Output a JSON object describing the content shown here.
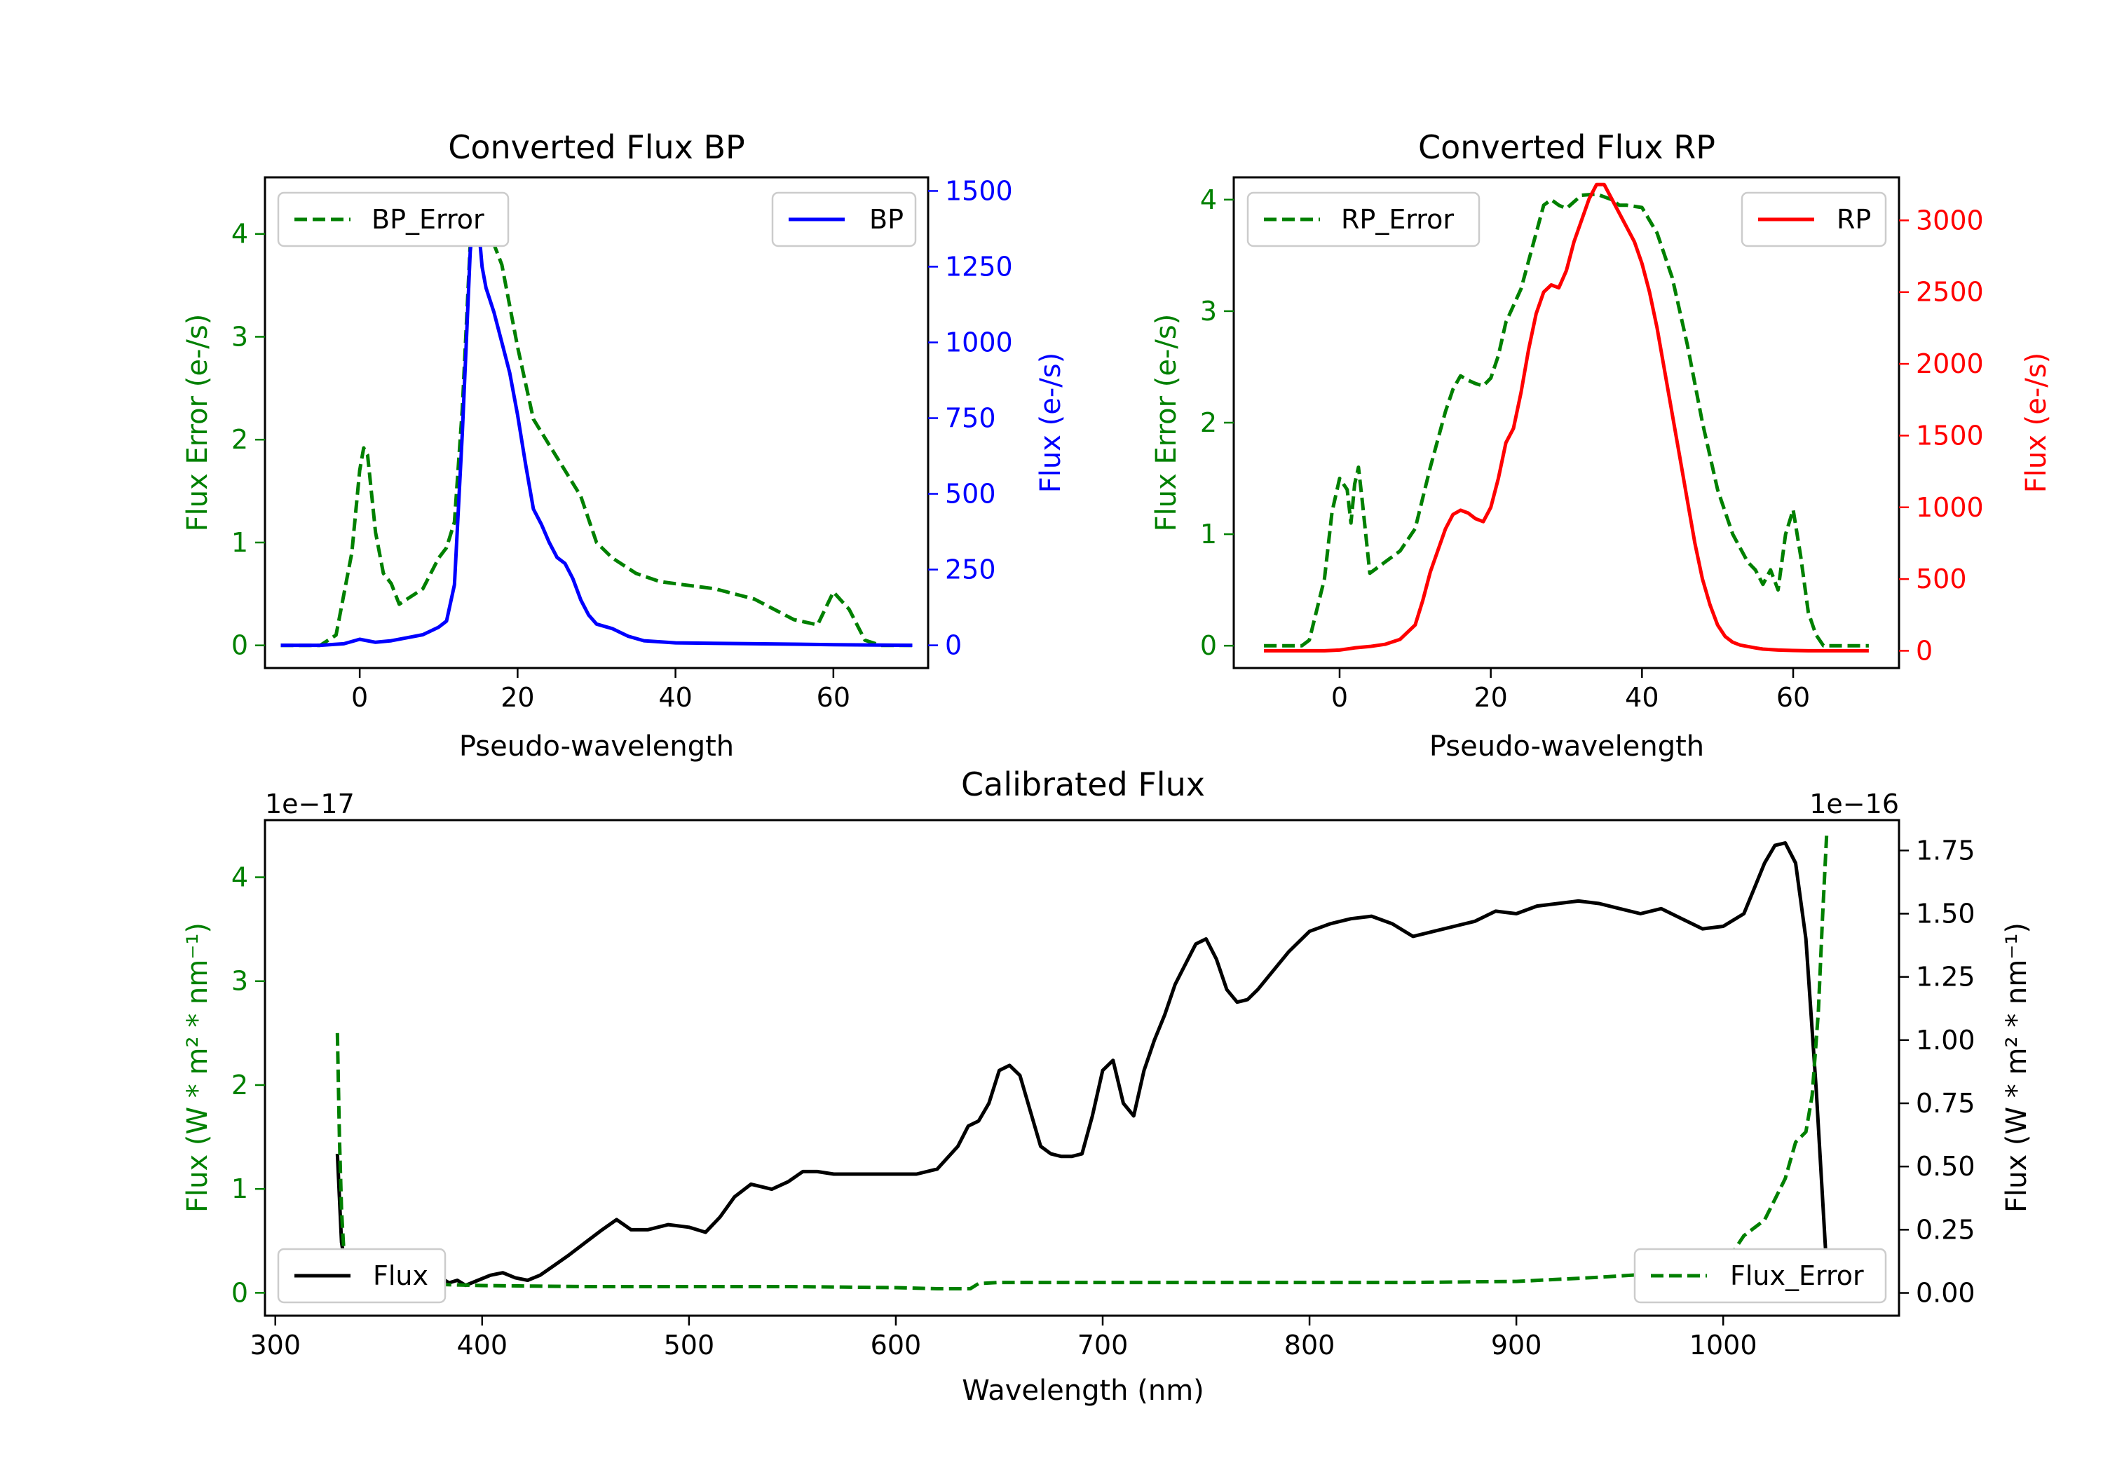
{
  "colors": {
    "error": "#008000",
    "bp": "#0000ff",
    "rp": "#ff0000",
    "flux": "#000000"
  },
  "chart_data": [
    {
      "type": "line",
      "id": "bp",
      "title": "Converted Flux BP",
      "xlabel": "Pseudo-wavelength",
      "ylabel_left": "Flux Error (e-/s)",
      "ylabel_right": "Flux (e-/s)",
      "xlim": [
        -12,
        72
      ],
      "ylim_left": [
        -0.22,
        4.55
      ],
      "ylim_right": [
        -75,
        1545
      ],
      "xticks": [
        0,
        20,
        40,
        60
      ],
      "yticks_left": [
        0,
        1,
        2,
        3,
        4
      ],
      "yticks_right": [
        0,
        250,
        500,
        750,
        1000,
        1250,
        1500
      ],
      "legend_left": "BP_Error",
      "legend_right": "BP",
      "series": [
        {
          "name": "BP_Error",
          "axis": "left",
          "style": "dashed",
          "x": [
            -10,
            -5,
            -3,
            -1,
            0,
            0.5,
            1,
            2,
            3,
            4,
            5,
            6,
            8,
            10,
            11,
            12,
            13,
            14,
            15,
            16,
            17,
            18,
            20,
            22,
            24,
            26,
            28,
            30,
            32,
            35,
            38,
            40,
            45,
            50,
            55,
            58,
            60,
            62,
            64,
            66,
            70
          ],
          "y": [
            0,
            0,
            0.1,
            0.9,
            1.7,
            1.92,
            1.85,
            1.1,
            0.7,
            0.6,
            0.4,
            0.45,
            0.55,
            0.85,
            0.95,
            1.2,
            2.3,
            3.9,
            4.2,
            4.15,
            3.9,
            3.7,
            2.9,
            2.2,
            1.95,
            1.7,
            1.45,
            1.0,
            0.85,
            0.7,
            0.62,
            0.6,
            0.55,
            0.45,
            0.25,
            0.2,
            0.52,
            0.35,
            0.05,
            0,
            0
          ]
        },
        {
          "name": "BP",
          "axis": "right",
          "style": "solid",
          "x": [
            -10,
            -5,
            -2,
            0,
            2,
            4,
            6,
            8,
            10,
            11,
            12,
            13,
            13.5,
            14,
            14.5,
            15,
            15.5,
            16,
            17,
            18,
            19,
            20,
            21,
            22,
            23,
            24,
            25,
            26,
            27,
            28,
            29,
            30,
            32,
            34,
            36,
            40,
            50,
            60,
            70
          ],
          "y": [
            0,
            0,
            5,
            20,
            10,
            15,
            25,
            35,
            60,
            80,
            200,
            700,
            1000,
            1300,
            1430,
            1400,
            1250,
            1180,
            1100,
            1000,
            900,
            760,
            600,
            450,
            400,
            340,
            290,
            270,
            220,
            150,
            100,
            70,
            55,
            30,
            15,
            8,
            5,
            2,
            0
          ]
        }
      ]
    },
    {
      "type": "line",
      "id": "rp",
      "title": "Converted Flux RP",
      "xlabel": "Pseudo-wavelength",
      "ylabel_left": "Flux Error (e-/s)",
      "ylabel_right": "Flux (e-/s)",
      "xlim": [
        -14,
        74
      ],
      "ylim_left": [
        -0.2,
        4.2
      ],
      "ylim_right": [
        -120,
        3300
      ],
      "xticks": [
        0,
        20,
        40,
        60
      ],
      "yticks_left": [
        0,
        1,
        2,
        3,
        4
      ],
      "yticks_right": [
        0,
        500,
        1000,
        1500,
        2000,
        2500,
        3000
      ],
      "legend_left": "RP_Error",
      "legend_right": "RP",
      "series": [
        {
          "name": "RP_Error",
          "axis": "left",
          "style": "dashed",
          "x": [
            -10,
            -5,
            -4,
            -2,
            -1,
            0,
            1,
            1.5,
            2,
            2.5,
            3,
            4,
            6,
            8,
            10,
            12,
            14,
            15,
            16,
            17,
            18,
            19,
            20,
            21,
            22,
            23,
            24,
            26,
            27,
            28,
            29,
            30,
            32,
            34,
            36,
            37,
            38,
            40,
            42,
            44,
            46,
            48,
            50,
            52,
            54,
            55,
            56,
            57,
            58,
            59,
            60,
            61,
            62,
            63,
            64,
            70
          ],
          "y": [
            0,
            0,
            0.05,
            0.6,
            1.2,
            1.5,
            1.4,
            1.1,
            1.45,
            1.6,
            1.3,
            0.65,
            0.75,
            0.85,
            1.05,
            1.6,
            2.1,
            2.3,
            2.42,
            2.38,
            2.35,
            2.33,
            2.4,
            2.6,
            2.9,
            3.05,
            3.2,
            3.7,
            3.95,
            4.0,
            3.95,
            3.92,
            4.04,
            4.05,
            4.0,
            3.95,
            3.95,
            3.93,
            3.7,
            3.3,
            2.7,
            2.0,
            1.4,
            1.0,
            0.75,
            0.68,
            0.55,
            0.68,
            0.5,
            1.0,
            1.22,
            0.8,
            0.3,
            0.1,
            0,
            0
          ]
        },
        {
          "name": "RP",
          "axis": "right",
          "style": "solid",
          "x": [
            -10,
            -5,
            -2,
            0,
            2,
            4,
            6,
            8,
            10,
            11,
            12,
            13,
            14,
            15,
            16,
            17,
            18,
            19,
            20,
            21,
            22,
            23,
            24,
            25,
            26,
            27,
            28,
            29,
            30,
            31,
            32,
            33,
            34,
            35,
            36,
            37,
            38,
            39,
            40,
            41,
            42,
            43,
            44,
            45,
            46,
            47,
            48,
            49,
            50,
            51,
            52,
            53,
            54,
            55,
            56,
            58,
            60,
            62,
            64,
            70
          ],
          "y": [
            0,
            0,
            0,
            5,
            20,
            30,
            45,
            80,
            180,
            350,
            550,
            700,
            850,
            950,
            980,
            960,
            920,
            900,
            1000,
            1200,
            1450,
            1550,
            1800,
            2100,
            2350,
            2500,
            2550,
            2530,
            2650,
            2850,
            3000,
            3150,
            3250,
            3250,
            3150,
            3050,
            2950,
            2850,
            2700,
            2500,
            2250,
            1950,
            1650,
            1350,
            1050,
            750,
            500,
            320,
            180,
            100,
            60,
            40,
            30,
            20,
            12,
            5,
            2,
            0,
            0,
            0
          ]
        }
      ]
    },
    {
      "type": "line",
      "id": "cal",
      "title": "Calibrated Flux",
      "xlabel": "Wavelength (nm)",
      "ylabel_left": "Flux (W * m² * nm⁻¹)",
      "ylabel_right": "Flux (W * m² * nm⁻¹)",
      "offset_left": "1e−17",
      "offset_right": "1e−16",
      "xlim": [
        295,
        1085
      ],
      "ylim_left": [
        -0.22,
        4.55
      ],
      "ylim_right": [
        -0.09,
        1.87
      ],
      "xticks": [
        300,
        400,
        500,
        600,
        700,
        800,
        900,
        1000
      ],
      "yticks_left": [
        0,
        1,
        2,
        3,
        4
      ],
      "yticks_right": [
        0.0,
        0.25,
        0.5,
        0.75,
        1.0,
        1.25,
        1.5,
        1.75
      ],
      "ytick_labels_right": [
        "0.00",
        "0.25",
        "0.50",
        "0.75",
        "1.00",
        "1.25",
        "1.50",
        "1.75"
      ],
      "legend_left": "Flux",
      "legend_right": "Flux_Error",
      "series": [
        {
          "name": "Flux",
          "axis": "right",
          "style": "solid",
          "x": [
            330,
            332,
            334,
            338,
            345,
            352,
            360,
            368,
            376,
            380,
            384,
            388,
            392,
            398,
            404,
            410,
            416,
            422,
            428,
            435,
            442,
            450,
            458,
            465,
            472,
            480,
            490,
            500,
            508,
            515,
            522,
            530,
            540,
            548,
            555,
            562,
            570,
            580,
            590,
            600,
            610,
            620,
            630,
            635,
            640,
            645,
            650,
            655,
            660,
            665,
            670,
            675,
            680,
            685,
            690,
            695,
            700,
            705,
            710,
            715,
            720,
            725,
            730,
            735,
            740,
            745,
            750,
            755,
            760,
            765,
            770,
            775,
            780,
            790,
            800,
            810,
            820,
            830,
            840,
            850,
            860,
            870,
            880,
            890,
            900,
            910,
            920,
            930,
            940,
            950,
            960,
            970,
            980,
            990,
            1000,
            1010,
            1015,
            1020,
            1025,
            1030,
            1035,
            1040,
            1045,
            1050
          ],
          "y": [
            0.55,
            0.2,
            0.1,
            0.07,
            0.06,
            0.05,
            0.06,
            0.05,
            0.04,
            0.06,
            0.04,
            0.05,
            0.03,
            0.05,
            0.07,
            0.08,
            0.06,
            0.05,
            0.07,
            0.11,
            0.15,
            0.2,
            0.25,
            0.29,
            0.25,
            0.25,
            0.27,
            0.26,
            0.24,
            0.3,
            0.38,
            0.43,
            0.41,
            0.44,
            0.48,
            0.48,
            0.47,
            0.47,
            0.47,
            0.47,
            0.47,
            0.49,
            0.58,
            0.66,
            0.68,
            0.75,
            0.88,
            0.9,
            0.86,
            0.72,
            0.58,
            0.55,
            0.54,
            0.54,
            0.55,
            0.7,
            0.88,
            0.92,
            0.75,
            0.7,
            0.88,
            1.0,
            1.1,
            1.22,
            1.3,
            1.38,
            1.4,
            1.32,
            1.2,
            1.15,
            1.16,
            1.2,
            1.25,
            1.35,
            1.43,
            1.46,
            1.48,
            1.49,
            1.46,
            1.41,
            1.43,
            1.45,
            1.47,
            1.51,
            1.5,
            1.53,
            1.54,
            1.55,
            1.54,
            1.52,
            1.5,
            1.52,
            1.48,
            1.44,
            1.45,
            1.5,
            1.6,
            1.7,
            1.77,
            1.78,
            1.7,
            1.4,
            0.8,
            0.1
          ]
        },
        {
          "name": "Flux_Error",
          "axis": "left",
          "style": "dashed",
          "x": [
            330,
            331,
            332,
            333,
            335,
            338,
            342,
            350,
            360,
            380,
            400,
            450,
            500,
            550,
            600,
            620,
            636,
            640,
            650,
            700,
            750,
            800,
            850,
            900,
            940,
            980,
            1000,
            1005,
            1010,
            1020,
            1025,
            1030,
            1035,
            1040,
            1043,
            1046,
            1048,
            1050
          ],
          "y": [
            2.5,
            1.5,
            0.8,
            0.45,
            0.3,
            0.2,
            0.15,
            0.12,
            0.1,
            0.08,
            0.07,
            0.06,
            0.06,
            0.06,
            0.05,
            0.04,
            0.04,
            0.09,
            0.1,
            0.1,
            0.1,
            0.1,
            0.1,
            0.11,
            0.15,
            0.2,
            0.28,
            0.4,
            0.55,
            0.7,
            0.9,
            1.1,
            1.45,
            1.55,
            1.9,
            2.7,
            3.6,
            4.4
          ]
        }
      ]
    }
  ]
}
